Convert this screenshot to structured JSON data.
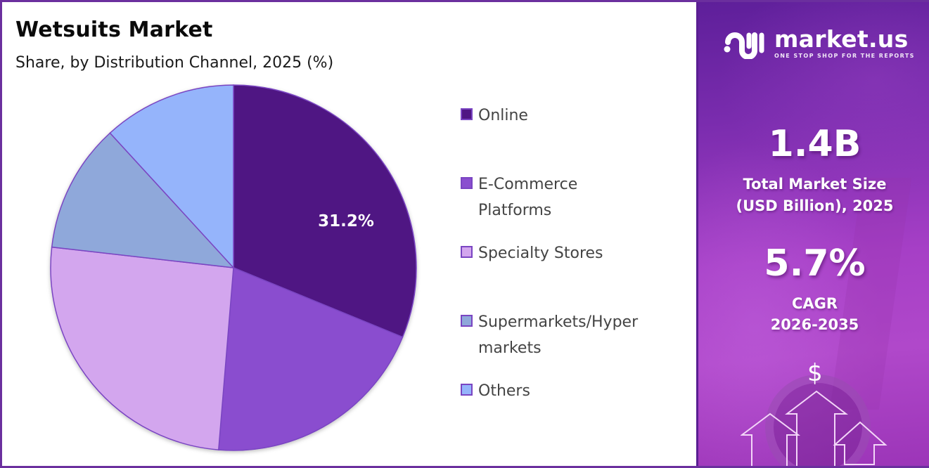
{
  "header": {
    "title": "Wetsuits Market",
    "subtitle": "Share, by Distribution Channel, 2025 (%)"
  },
  "chart_data": {
    "type": "pie",
    "title": "Wetsuits Market",
    "subtitle": "Share, by Distribution Channel, 2025 (%)",
    "categories": [
      "Online",
      "E-Commerce Platforms",
      "Specialty Stores",
      "Supermarkets/Hyper markets",
      "Others"
    ],
    "values": [
      31.2,
      20.1,
      25.5,
      11.4,
      11.8
    ],
    "colors": [
      "#4f1683",
      "#8a4ecf",
      "#d3a6ee",
      "#8fa8da",
      "#95b4fb"
    ],
    "labeled_values": {
      "Online": "31.2%"
    },
    "start_angle_deg": 0,
    "direction": "clockwise",
    "legend_position": "right"
  },
  "legend": {
    "items": [
      {
        "label_lines": [
          "Online"
        ],
        "color": "#4f1683"
      },
      {
        "label_lines": [
          "E-Commerce",
          "Platforms"
        ],
        "color": "#8a4ecf"
      },
      {
        "label_lines": [
          "Specialty Stores"
        ],
        "color": "#d3a6ee"
      },
      {
        "label_lines": [
          "Supermarkets/Hyper",
          "markets"
        ],
        "color": "#8fa8da"
      },
      {
        "label_lines": [
          "Others"
        ],
        "color": "#95b4fb"
      }
    ]
  },
  "pie_label": "31.2%",
  "brand": {
    "name": "market.us",
    "tagline": "ONE STOP SHOP FOR THE REPORTS"
  },
  "stats": {
    "market_size_value": "1.4B",
    "market_size_caption_1": "Total Market Size",
    "market_size_caption_2": "(USD Billion), 2025",
    "cagr_value": "5.7%",
    "cagr_caption_1": "CAGR",
    "cagr_caption_2": "2026-2035"
  },
  "icons": {
    "dollar": "$"
  },
  "colors": {
    "frame": "#6b2f9e",
    "panel_top": "#5e1f9a",
    "panel_bottom": "#b048ca"
  }
}
